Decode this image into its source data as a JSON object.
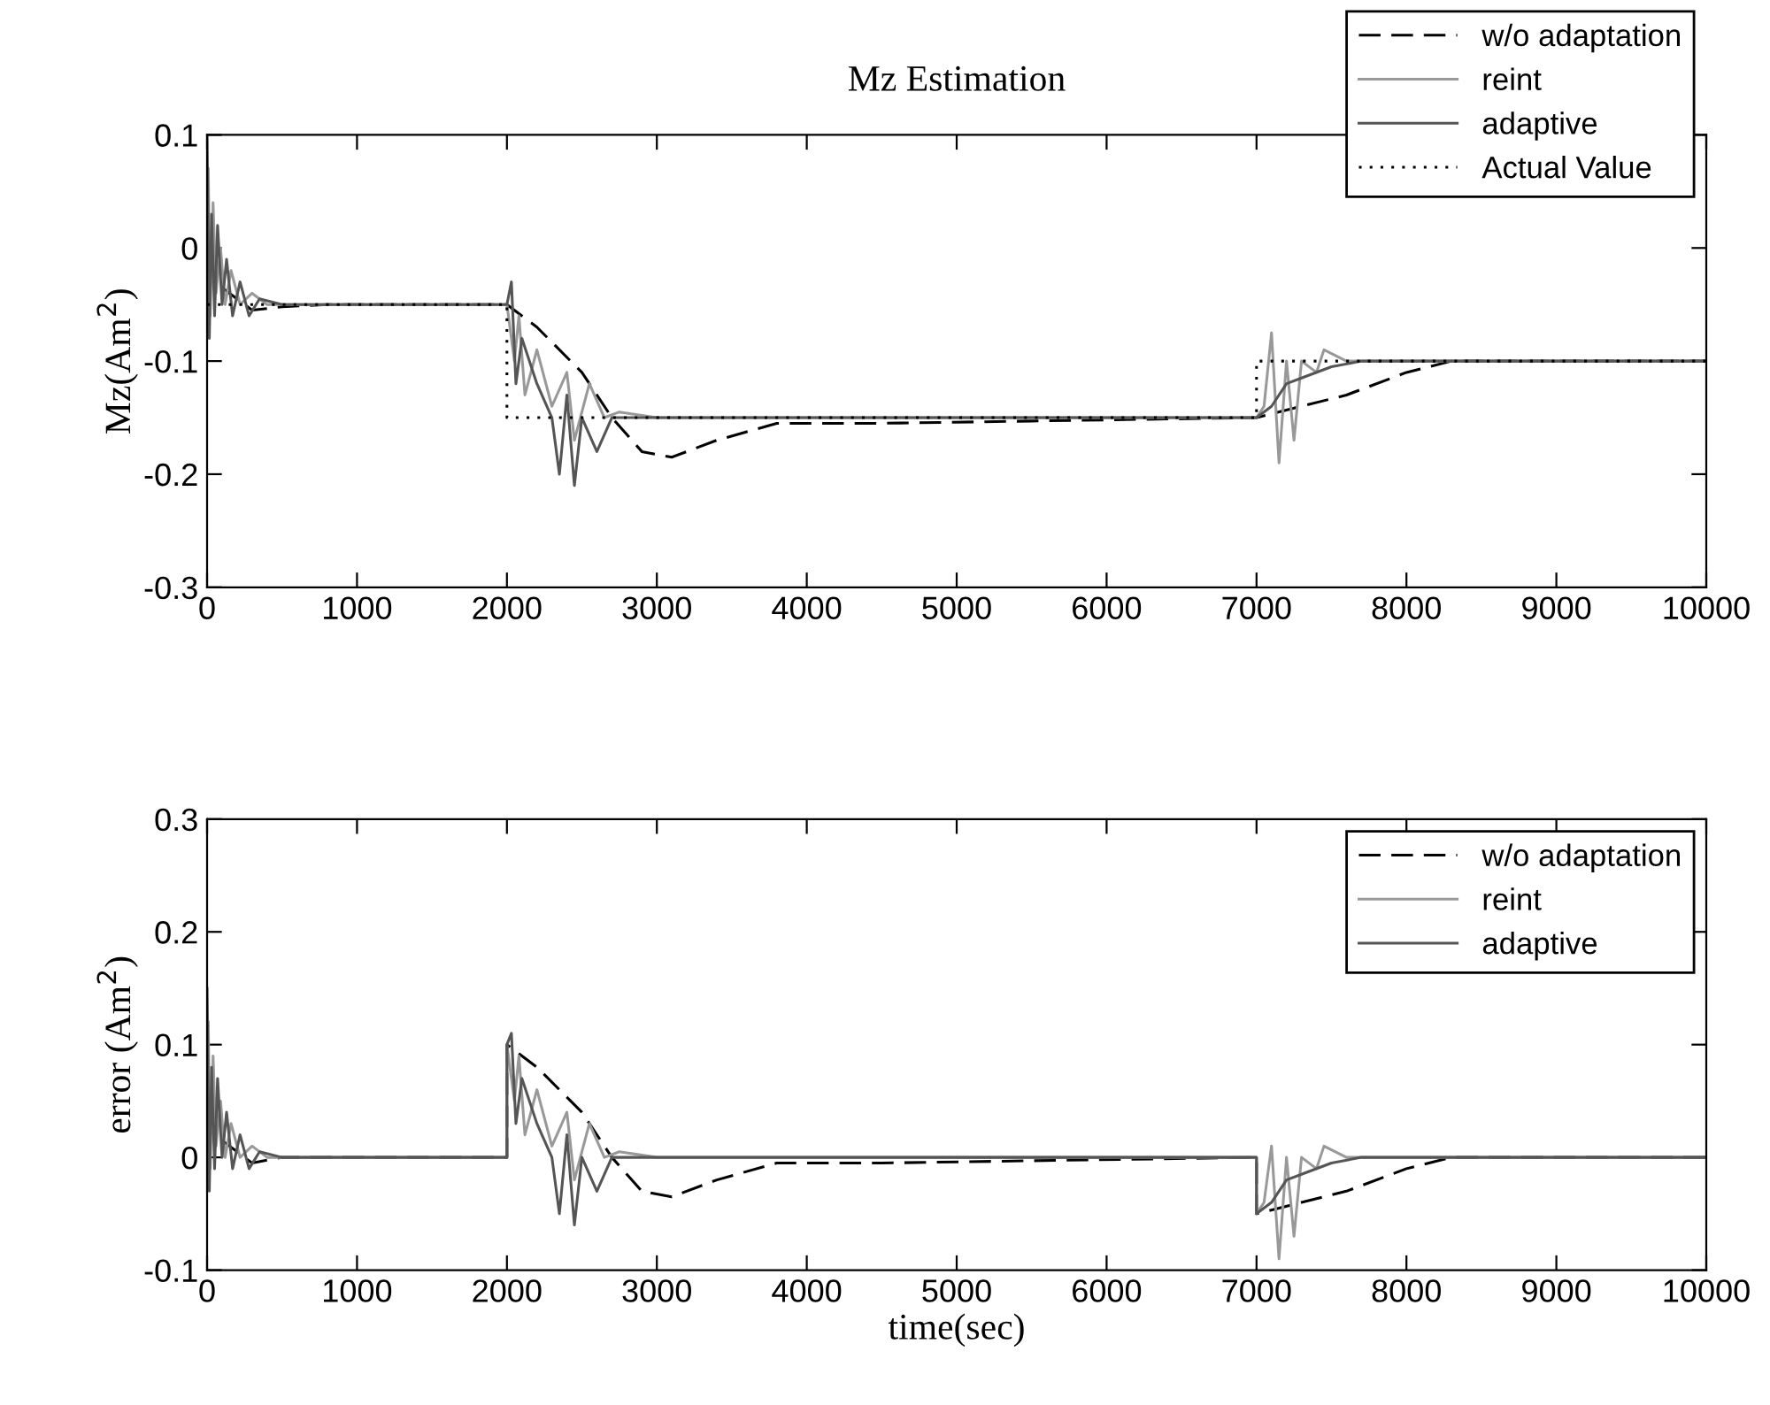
{
  "chart_data": [
    {
      "type": "line",
      "title": "Mz Estimation",
      "ylabel": "Mz(Am$^{2}$)",
      "xlim": [
        0,
        10000
      ],
      "ylim": [
        -0.3,
        0.1
      ],
      "xticks": [
        0,
        1000,
        2000,
        3000,
        4000,
        5000,
        6000,
        7000,
        8000,
        9000,
        10000
      ],
      "yticks": [
        -0.3,
        -0.2,
        -0.1,
        0,
        0.1
      ],
      "grid": false,
      "legend": "top right",
      "series": [
        {
          "name": "w/o adaptation",
          "color": "#000000",
          "line_style": "dashed",
          "x": [
            0,
            50,
            150,
            300,
            500,
            800,
            2000,
            2200,
            2500,
            2700,
            2900,
            3100,
            3400,
            3800,
            4500,
            5500,
            7000,
            7300,
            7600,
            8000,
            8300,
            10000
          ],
          "values": [
            0.02,
            -0.03,
            -0.04,
            -0.055,
            -0.052,
            -0.05,
            -0.05,
            -0.07,
            -0.11,
            -0.15,
            -0.18,
            -0.185,
            -0.17,
            -0.155,
            -0.155,
            -0.153,
            -0.15,
            -0.14,
            -0.13,
            -0.11,
            -0.1,
            -0.1
          ]
        },
        {
          "name": "reint",
          "color": "#999999",
          "line_style": "solid",
          "x": [
            8,
            20,
            40,
            60,
            90,
            120,
            160,
            220,
            300,
            400,
            600,
            2000,
            2050,
            2080,
            2120,
            2200,
            2300,
            2400,
            2450,
            2550,
            2650,
            2750,
            3000,
            7000,
            7050,
            7100,
            7150,
            7200,
            7250,
            7300,
            7400,
            7450,
            7600,
            7800,
            10000
          ],
          "values": [
            0.07,
            -0.06,
            0.04,
            -0.04,
            0.0,
            -0.05,
            -0.02,
            -0.05,
            -0.04,
            -0.05,
            -0.05,
            -0.05,
            -0.1,
            -0.06,
            -0.13,
            -0.09,
            -0.14,
            -0.11,
            -0.17,
            -0.12,
            -0.15,
            -0.145,
            -0.15,
            -0.15,
            -0.14,
            -0.075,
            -0.19,
            -0.1,
            -0.17,
            -0.1,
            -0.11,
            -0.09,
            -0.1,
            -0.1,
            -0.1
          ]
        },
        {
          "name": "adaptive",
          "color": "#555555",
          "line_style": "solid",
          "x": [
            0,
            15,
            30,
            50,
            70,
            100,
            130,
            170,
            220,
            280,
            350,
            500,
            2000,
            2030,
            2060,
            2100,
            2200,
            2300,
            2350,
            2400,
            2450,
            2500,
            2600,
            2700,
            3000,
            7000,
            7100,
            7200,
            7300,
            7500,
            7700,
            10000
          ],
          "values": [
            0.1,
            -0.08,
            0.03,
            -0.06,
            0.02,
            -0.05,
            -0.01,
            -0.06,
            -0.03,
            -0.06,
            -0.045,
            -0.05,
            -0.05,
            -0.03,
            -0.12,
            -0.08,
            -0.12,
            -0.15,
            -0.2,
            -0.13,
            -0.21,
            -0.15,
            -0.18,
            -0.15,
            -0.15,
            -0.15,
            -0.14,
            -0.12,
            -0.115,
            -0.105,
            -0.1,
            -0.1
          ]
        },
        {
          "name": "Actual Value",
          "color": "#000000",
          "line_style": "dotted",
          "x": [
            0,
            2000,
            2000,
            7000,
            7000,
            10000
          ],
          "values": [
            -0.05,
            -0.05,
            -0.15,
            -0.15,
            -0.1,
            -0.1
          ]
        }
      ]
    },
    {
      "type": "line",
      "xlabel": "time(sec)",
      "ylabel": "error (Am$^{2}$)",
      "xlim": [
        0,
        10000
      ],
      "ylim": [
        -0.1,
        0.3
      ],
      "xticks": [
        0,
        1000,
        2000,
        3000,
        4000,
        5000,
        6000,
        7000,
        8000,
        9000,
        10000
      ],
      "yticks": [
        -0.1,
        0,
        0.1,
        0.2,
        0.3
      ],
      "grid": false,
      "legend": "top right",
      "series": [
        {
          "name": "w/o adaptation",
          "color": "#000000",
          "line_style": "dashed",
          "x": [
            0,
            50,
            150,
            300,
            500,
            2000,
            2000,
            2200,
            2500,
            2700,
            2900,
            3100,
            3400,
            3800,
            4500,
            5500,
            7000,
            7000,
            7300,
            7600,
            8000,
            8300,
            10000
          ],
          "values": [
            0.07,
            0.02,
            0.01,
            -0.005,
            0.0,
            0,
            0.1,
            0.08,
            0.04,
            0.0,
            -0.03,
            -0.035,
            -0.02,
            -0.005,
            -0.005,
            -0.003,
            0,
            -0.05,
            -0.04,
            -0.03,
            -0.01,
            0,
            0
          ]
        },
        {
          "name": "reint",
          "color": "#999999",
          "line_style": "solid",
          "x": [
            8,
            20,
            40,
            60,
            90,
            120,
            160,
            220,
            300,
            400,
            700,
            2000,
            2000,
            2050,
            2080,
            2120,
            2200,
            2300,
            2400,
            2450,
            2550,
            2650,
            2750,
            3000,
            7000,
            7000,
            7050,
            7100,
            7150,
            7200,
            7250,
            7300,
            7400,
            7450,
            7600,
            10000
          ],
          "values": [
            0.12,
            -0.01,
            0.09,
            0.01,
            0.05,
            0.0,
            0.03,
            0.0,
            0.01,
            0.0,
            0,
            0,
            0.1,
            0.05,
            0.09,
            0.02,
            0.06,
            0.01,
            0.04,
            -0.02,
            0.03,
            0.0,
            0.005,
            0,
            0,
            -0.05,
            -0.04,
            0.01,
            -0.09,
            0.0,
            -0.07,
            0.0,
            -0.01,
            0.01,
            0.0,
            0
          ]
        },
        {
          "name": "adaptive",
          "color": "#555555",
          "line_style": "solid",
          "x": [
            0,
            15,
            30,
            50,
            70,
            100,
            130,
            170,
            220,
            280,
            350,
            500,
            2000,
            2000,
            2030,
            2060,
            2100,
            2200,
            2300,
            2350,
            2400,
            2450,
            2500,
            2600,
            2700,
            3000,
            7000,
            7000,
            7100,
            7200,
            7300,
            7500,
            7700,
            10000
          ],
          "values": [
            0.15,
            -0.03,
            0.08,
            -0.01,
            0.07,
            0.0,
            0.04,
            -0.01,
            0.02,
            -0.01,
            0.005,
            0,
            0,
            0.1,
            0.11,
            0.03,
            0.07,
            0.03,
            0.0,
            -0.05,
            0.02,
            -0.06,
            0.0,
            -0.03,
            0.0,
            0,
            0,
            -0.05,
            -0.04,
            -0.02,
            -0.015,
            -0.005,
            0,
            0
          ]
        }
      ]
    }
  ]
}
